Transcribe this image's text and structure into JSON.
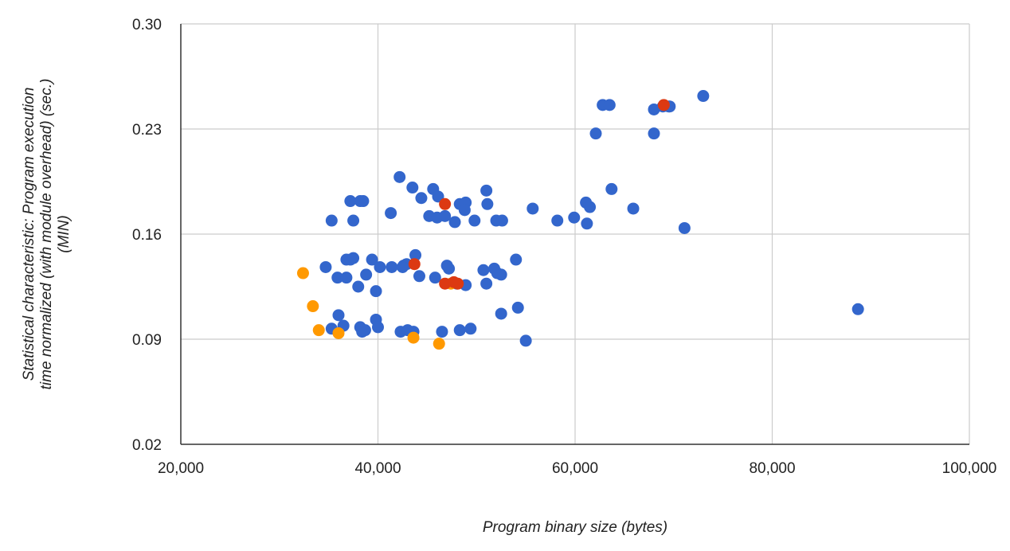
{
  "chart_data": {
    "type": "scatter",
    "title": "",
    "xlabel": "Program binary size (bytes)",
    "ylabel_lines": [
      "Statistical characteristic: Program execution",
      "time normalized (with module overhead) (sec.)",
      "(MIN)"
    ],
    "xlim": [
      20000,
      100000
    ],
    "ylim": [
      0.02,
      0.3
    ],
    "x_ticks": [
      20000,
      40000,
      60000,
      80000,
      100000
    ],
    "x_tick_labels": [
      "20,000",
      "40,000",
      "60,000",
      "80,000",
      "100,000"
    ],
    "y_ticks": [
      0.02,
      0.09,
      0.16,
      0.23,
      0.3
    ],
    "y_tick_labels": [
      "0.02",
      "0.09",
      "0.16",
      "0.23",
      "0.30"
    ],
    "grid": true,
    "colors": {
      "blue": "#3366cc",
      "orange": "#ff9900",
      "red": "#dc3912",
      "grid": "#cccccc",
      "axis": "#333333"
    },
    "series": [
      {
        "name": "blue",
        "color": "#3366cc",
        "points": [
          [
            42200,
            0.198
          ],
          [
            43500,
            0.191
          ],
          [
            45600,
            0.19
          ],
          [
            46100,
            0.185
          ],
          [
            44400,
            0.184
          ],
          [
            37200,
            0.182
          ],
          [
            38200,
            0.182
          ],
          [
            38500,
            0.182
          ],
          [
            48300,
            0.18
          ],
          [
            48900,
            0.181
          ],
          [
            48800,
            0.176
          ],
          [
            51000,
            0.189
          ],
          [
            51100,
            0.18
          ],
          [
            55700,
            0.177
          ],
          [
            61100,
            0.181
          ],
          [
            61500,
            0.178
          ],
          [
            63700,
            0.19
          ],
          [
            65900,
            0.177
          ],
          [
            41300,
            0.174
          ],
          [
            45200,
            0.172
          ],
          [
            46000,
            0.171
          ],
          [
            46800,
            0.172
          ],
          [
            47800,
            0.168
          ],
          [
            49800,
            0.169
          ],
          [
            52000,
            0.169
          ],
          [
            52600,
            0.169
          ],
          [
            58200,
            0.169
          ],
          [
            59900,
            0.171
          ],
          [
            61200,
            0.167
          ],
          [
            35300,
            0.169
          ],
          [
            37500,
            0.169
          ],
          [
            71100,
            0.164
          ],
          [
            62100,
            0.227
          ],
          [
            68000,
            0.227
          ],
          [
            62800,
            0.246
          ],
          [
            63500,
            0.246
          ],
          [
            68000,
            0.243
          ],
          [
            69500,
            0.245
          ],
          [
            69600,
            0.245
          ],
          [
            73000,
            0.252
          ],
          [
            68900,
            0.245
          ],
          [
            43800,
            0.146
          ],
          [
            36800,
            0.143
          ],
          [
            37200,
            0.143
          ],
          [
            37500,
            0.144
          ],
          [
            39400,
            0.143
          ],
          [
            40200,
            0.138
          ],
          [
            41400,
            0.138
          ],
          [
            42600,
            0.139
          ],
          [
            42900,
            0.14
          ],
          [
            42500,
            0.138
          ],
          [
            44200,
            0.132
          ],
          [
            45800,
            0.131
          ],
          [
            47000,
            0.139
          ],
          [
            47200,
            0.137
          ],
          [
            48000,
            0.127
          ],
          [
            48900,
            0.126
          ],
          [
            50700,
            0.136
          ],
          [
            51000,
            0.127
          ],
          [
            51800,
            0.137
          ],
          [
            52100,
            0.134
          ],
          [
            52500,
            0.133
          ],
          [
            54000,
            0.143
          ],
          [
            34700,
            0.138
          ],
          [
            35900,
            0.131
          ],
          [
            36800,
            0.131
          ],
          [
            38000,
            0.125
          ],
          [
            38800,
            0.133
          ],
          [
            39800,
            0.122
          ],
          [
            54200,
            0.111
          ],
          [
            52500,
            0.107
          ],
          [
            36000,
            0.106
          ],
          [
            39800,
            0.103
          ],
          [
            36500,
            0.099
          ],
          [
            38200,
            0.098
          ],
          [
            35300,
            0.097
          ],
          [
            38400,
            0.095
          ],
          [
            38700,
            0.096
          ],
          [
            40000,
            0.098
          ],
          [
            42300,
            0.095
          ],
          [
            43000,
            0.096
          ],
          [
            43600,
            0.095
          ],
          [
            46500,
            0.095
          ],
          [
            48300,
            0.096
          ],
          [
            49400,
            0.097
          ],
          [
            55000,
            0.089
          ],
          [
            88700,
            0.11
          ]
        ]
      },
      {
        "name": "orange",
        "color": "#ff9900",
        "points": [
          [
            32400,
            0.134
          ],
          [
            33400,
            0.112
          ],
          [
            34000,
            0.096
          ],
          [
            36000,
            0.094
          ],
          [
            43600,
            0.091
          ],
          [
            46200,
            0.087
          ],
          [
            47400,
            0.127
          ]
        ]
      },
      {
        "name": "red",
        "color": "#dc3912",
        "points": [
          [
            43700,
            0.14
          ],
          [
            46800,
            0.18
          ],
          [
            46800,
            0.127
          ],
          [
            47700,
            0.128
          ],
          [
            48100,
            0.127
          ],
          [
            69000,
            0.246
          ]
        ]
      }
    ]
  }
}
